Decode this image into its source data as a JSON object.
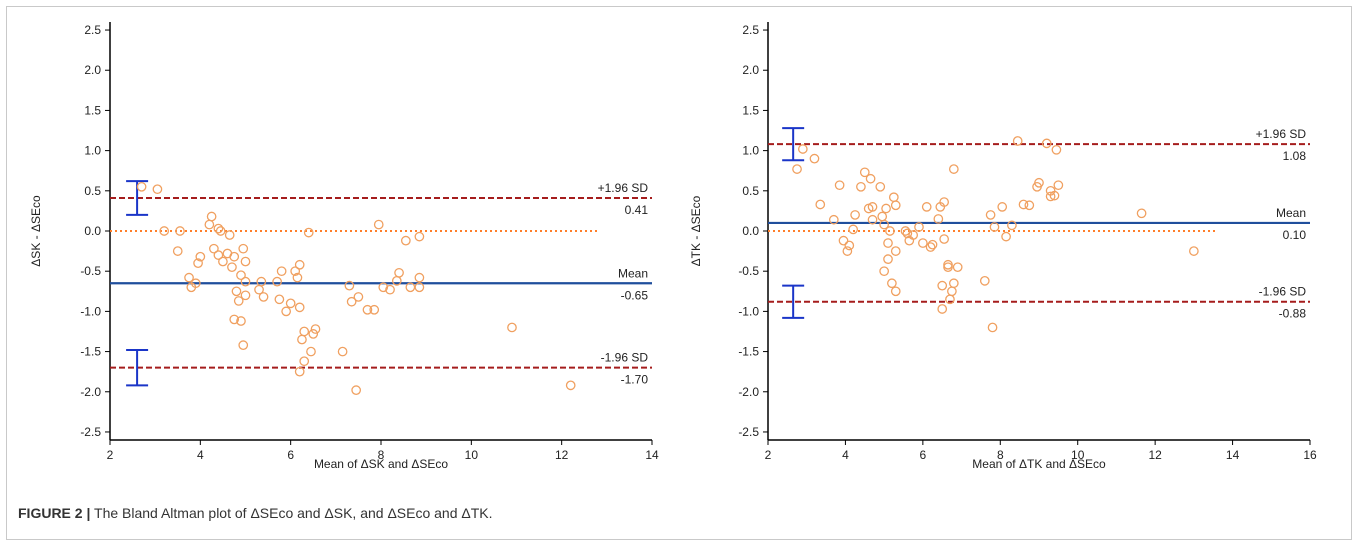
{
  "caption": {
    "label": "FIGURE 2 |",
    "text": " The Bland Altman plot of ΔSEco and ΔSK, and ΔSEco and ΔTK."
  },
  "colors": {
    "point": "#f0a060",
    "mean": "#1f4e9c",
    "limit": "#a51c1c",
    "zero": "#ff7f2a",
    "ci": "#1a35c8",
    "axis": "#000000"
  },
  "chart_data": [
    {
      "type": "scatter",
      "title": "",
      "xlabel": "Mean of ΔSK and ΔSEco",
      "ylabel": "ΔSK - ΔSEco",
      "xlim": [
        2,
        14
      ],
      "ylim": [
        -2.6,
        2.6
      ],
      "x_ticks": [
        2,
        4,
        6,
        8,
        10,
        12,
        14
      ],
      "y_ticks": [
        2.5,
        2.0,
        1.5,
        1.0,
        0.5,
        0.0,
        -0.5,
        -1.0,
        -1.5,
        -2.0,
        -2.5
      ],
      "x_tick_labels": [
        "2",
        "4",
        "6",
        "8",
        "10",
        "12",
        "14"
      ],
      "y_tick_labels": [
        "2.5",
        "2.0",
        "1.5",
        "1.0",
        "0.5",
        "0.0",
        "-0.5",
        "-1.0",
        "-1.5",
        "-2.0",
        "-2.5"
      ],
      "zero_line_end": 12.8,
      "mean": {
        "value": -0.65,
        "label": "Mean",
        "value_label": "-0.65"
      },
      "upper_loa": {
        "value": 0.41,
        "label": "+1.96 SD",
        "value_label": "0.41"
      },
      "lower_loa": {
        "value": -1.7,
        "label": "-1.96 SD",
        "value_label": "-1.70"
      },
      "ci_bars": [
        {
          "x": 2.6,
          "low": 0.2,
          "high": 0.62
        },
        {
          "x": 2.6,
          "low": -1.92,
          "high": -1.48
        }
      ],
      "points": [
        [
          2.7,
          0.55
        ],
        [
          3.05,
          0.52
        ],
        [
          3.2,
          0.0
        ],
        [
          3.5,
          -0.25
        ],
        [
          3.55,
          0.0
        ],
        [
          3.75,
          -0.58
        ],
        [
          3.8,
          -0.7
        ],
        [
          3.9,
          -0.65
        ],
        [
          3.95,
          -0.4
        ],
        [
          4.0,
          -0.32
        ],
        [
          4.2,
          0.08
        ],
        [
          4.25,
          0.18
        ],
        [
          4.3,
          -0.22
        ],
        [
          4.4,
          0.03
        ],
        [
          4.4,
          -0.3
        ],
        [
          4.45,
          0.0
        ],
        [
          4.5,
          -0.38
        ],
        [
          4.6,
          -0.28
        ],
        [
          4.65,
          -0.05
        ],
        [
          4.7,
          -0.45
        ],
        [
          4.75,
          -0.32
        ],
        [
          4.75,
          -1.1
        ],
        [
          4.8,
          -0.75
        ],
        [
          4.85,
          -0.87
        ],
        [
          4.9,
          -0.55
        ],
        [
          4.9,
          -1.12
        ],
        [
          4.95,
          -0.22
        ],
        [
          4.95,
          -1.42
        ],
        [
          5.0,
          -0.8
        ],
        [
          5.0,
          -0.63
        ],
        [
          5.0,
          -0.38
        ],
        [
          5.3,
          -0.73
        ],
        [
          5.35,
          -0.63
        ],
        [
          5.4,
          -0.82
        ],
        [
          5.7,
          -0.63
        ],
        [
          5.75,
          -0.85
        ],
        [
          5.8,
          -0.5
        ],
        [
          5.9,
          -1.0
        ],
        [
          6.0,
          -0.9
        ],
        [
          6.1,
          -0.5
        ],
        [
          6.15,
          -0.58
        ],
        [
          6.2,
          -0.42
        ],
        [
          6.2,
          -0.95
        ],
        [
          6.2,
          -1.75
        ],
        [
          6.25,
          -1.35
        ],
        [
          6.3,
          -1.62
        ],
        [
          6.3,
          -1.25
        ],
        [
          6.4,
          -0.02
        ],
        [
          6.45,
          -1.5
        ],
        [
          6.5,
          -1.28
        ],
        [
          6.55,
          -1.22
        ],
        [
          7.15,
          -1.5
        ],
        [
          7.3,
          -0.68
        ],
        [
          7.35,
          -0.88
        ],
        [
          7.45,
          -1.98
        ],
        [
          7.5,
          -0.82
        ],
        [
          7.7,
          -0.98
        ],
        [
          7.85,
          -0.98
        ],
        [
          7.95,
          0.08
        ],
        [
          8.05,
          -0.7
        ],
        [
          8.2,
          -0.73
        ],
        [
          8.35,
          -0.62
        ],
        [
          8.4,
          -0.52
        ],
        [
          8.55,
          -0.12
        ],
        [
          8.65,
          -0.7
        ],
        [
          8.85,
          -0.58
        ],
        [
          8.85,
          -0.07
        ],
        [
          8.85,
          -0.7
        ],
        [
          10.9,
          -1.2
        ],
        [
          12.2,
          -1.92
        ]
      ]
    },
    {
      "type": "scatter",
      "title": "",
      "xlabel": "Mean of ΔTK and ΔSEco",
      "ylabel": "ΔTK - ΔSEco",
      "xlim": [
        2,
        16
      ],
      "ylim": [
        -2.6,
        2.6
      ],
      "x_ticks": [
        2,
        4,
        6,
        8,
        10,
        12,
        14,
        16
      ],
      "y_ticks": [
        2.5,
        2.0,
        1.5,
        1.0,
        0.5,
        0.0,
        -0.5,
        -1.0,
        -1.5,
        -2.0,
        -2.5
      ],
      "x_tick_labels": [
        "2",
        "4",
        "6",
        "8",
        "10",
        "12",
        "14",
        "16"
      ],
      "y_tick_labels": [
        "2.5",
        "2.0",
        "1.5",
        "1.0",
        "0.5",
        "0.0",
        "-0.5",
        "-1.0",
        "-1.5",
        "-2.0",
        "-2.5"
      ],
      "zero_line_end": 13.6,
      "mean": {
        "value": 0.1,
        "label": "Mean",
        "value_label": "0.10"
      },
      "upper_loa": {
        "value": 1.08,
        "label": "+1.96 SD",
        "value_label": "1.08"
      },
      "lower_loa": {
        "value": -0.88,
        "label": "-1.96 SD",
        "value_label": "-0.88"
      },
      "ci_bars": [
        {
          "x": 2.65,
          "low": 0.88,
          "high": 1.28
        },
        {
          "x": 2.65,
          "low": -1.08,
          "high": -0.68
        }
      ],
      "points": [
        [
          2.75,
          0.77
        ],
        [
          2.9,
          1.02
        ],
        [
          3.2,
          0.9
        ],
        [
          3.35,
          0.33
        ],
        [
          3.7,
          0.14
        ],
        [
          3.85,
          0.57
        ],
        [
          3.95,
          -0.12
        ],
        [
          4.05,
          -0.25
        ],
        [
          4.1,
          -0.18
        ],
        [
          4.2,
          0.02
        ],
        [
          4.25,
          0.2
        ],
        [
          4.4,
          0.55
        ],
        [
          4.5,
          0.73
        ],
        [
          4.6,
          0.28
        ],
        [
          4.65,
          0.65
        ],
        [
          4.7,
          0.3
        ],
        [
          4.7,
          0.14
        ],
        [
          4.9,
          0.55
        ],
        [
          4.95,
          0.18
        ],
        [
          5.0,
          0.08
        ],
        [
          5.0,
          -0.5
        ],
        [
          5.05,
          0.28
        ],
        [
          5.1,
          -0.35
        ],
        [
          5.1,
          -0.15
        ],
        [
          5.15,
          0.0
        ],
        [
          5.2,
          -0.65
        ],
        [
          5.25,
          0.42
        ],
        [
          5.3,
          -0.25
        ],
        [
          5.3,
          -0.75
        ],
        [
          5.3,
          0.32
        ],
        [
          5.55,
          0.0
        ],
        [
          5.6,
          -0.03
        ],
        [
          5.65,
          -0.12
        ],
        [
          5.75,
          -0.05
        ],
        [
          5.9,
          0.05
        ],
        [
          6.0,
          -0.15
        ],
        [
          6.1,
          0.3
        ],
        [
          6.2,
          -0.2
        ],
        [
          6.25,
          -0.17
        ],
        [
          6.4,
          0.15
        ],
        [
          6.45,
          0.3
        ],
        [
          6.5,
          -0.97
        ],
        [
          6.5,
          -0.68
        ],
        [
          6.55,
          -0.1
        ],
        [
          6.55,
          0.36
        ],
        [
          6.65,
          -0.42
        ],
        [
          6.65,
          -0.45
        ],
        [
          6.7,
          -0.85
        ],
        [
          6.75,
          -0.75
        ],
        [
          6.8,
          0.77
        ],
        [
          6.8,
          -0.65
        ],
        [
          6.9,
          -0.45
        ],
        [
          7.6,
          -0.62
        ],
        [
          7.75,
          0.2
        ],
        [
          7.8,
          -1.2
        ],
        [
          7.85,
          0.05
        ],
        [
          8.05,
          0.3
        ],
        [
          8.15,
          -0.07
        ],
        [
          8.3,
          0.07
        ],
        [
          8.45,
          1.12
        ],
        [
          8.6,
          0.33
        ],
        [
          8.75,
          0.32
        ],
        [
          8.95,
          0.55
        ],
        [
          9.0,
          0.6
        ],
        [
          9.2,
          1.09
        ],
        [
          9.3,
          0.43
        ],
        [
          9.3,
          0.5
        ],
        [
          9.4,
          0.44
        ],
        [
          9.45,
          1.01
        ],
        [
          9.5,
          0.57
        ],
        [
          11.65,
          0.22
        ],
        [
          13.0,
          -0.25
        ]
      ]
    }
  ]
}
